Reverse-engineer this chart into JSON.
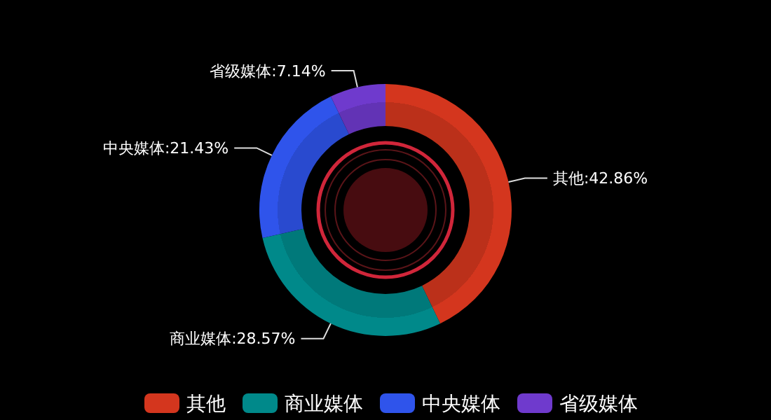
{
  "chart_data": {
    "type": "donut",
    "categories": [
      "其他",
      "商业媒体",
      "中央媒体",
      "省级媒体"
    ],
    "values": [
      42.86,
      28.57,
      21.43,
      7.14
    ],
    "colors": [
      "#d4361e",
      "#00898a",
      "#2f54eb",
      "#6f3acd"
    ],
    "value_labels": [
      "其他:42.86%",
      "商业媒体:28.57%",
      "中央媒体:21.43%",
      "省级媒体:7.14%"
    ],
    "legend": "bottom"
  }
}
